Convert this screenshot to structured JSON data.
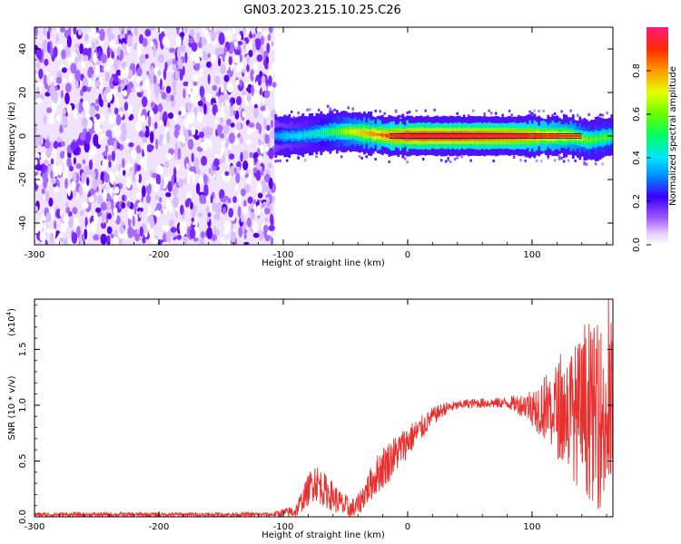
{
  "title": "GN03.2023.215.10.25.C26",
  "chart_data": [
    {
      "type": "heatmap",
      "xlabel": "Height of straight line (km)",
      "ylabel": "Frequency (Hz)",
      "xlim": [
        -300,
        165
      ],
      "ylim": [
        -50,
        50
      ],
      "x_ticks": [
        -300,
        -200,
        -100,
        0,
        100
      ],
      "y_ticks": [
        -40,
        -20,
        0,
        20,
        40
      ],
      "colorbar": {
        "label": "Normalized spectral amplitude",
        "range": [
          0.0,
          1.0
        ],
        "ticks": [
          0.0,
          0.2,
          0.4,
          0.6,
          0.8
        ]
      },
      "regions": [
        {
          "x_range": [
            -300,
            -107
          ],
          "description_level": "noise",
          "amplitude_range": [
            0.0,
            0.25
          ]
        },
        {
          "x_range": [
            -107,
            165
          ],
          "center_frequency_hz": 0,
          "band_halfwidth_hz": 8,
          "peak_amplitude": 1.0
        }
      ],
      "ridge": [
        {
          "x": -105,
          "y": 0,
          "amp": 0.35
        },
        {
          "x": -90,
          "y": 0,
          "amp": 0.4
        },
        {
          "x": -75,
          "y": 1,
          "amp": 0.45
        },
        {
          "x": -60,
          "y": 2,
          "amp": 0.55
        },
        {
          "x": -45,
          "y": 2,
          "amp": 0.7
        },
        {
          "x": -30,
          "y": 1,
          "amp": 0.8
        },
        {
          "x": -15,
          "y": 0,
          "amp": 0.9
        },
        {
          "x": 0,
          "y": 0,
          "amp": 1.0
        },
        {
          "x": 40,
          "y": 0,
          "amp": 1.0
        },
        {
          "x": 80,
          "y": 0,
          "amp": 0.95
        },
        {
          "x": 110,
          "y": 0,
          "amp": 0.85
        },
        {
          "x": 130,
          "y": 0,
          "amp": 0.75
        },
        {
          "x": 145,
          "y": -2,
          "amp": 0.6
        },
        {
          "x": 165,
          "y": 0,
          "amp": 0.55
        }
      ]
    },
    {
      "type": "line",
      "xlabel": "Height of straight line (km)",
      "ylabel": "SNR (10 * v/v)",
      "y_multiplier_label": "(x10",
      "y_multiplier_exp": "4",
      "xlim": [
        -300,
        165
      ],
      "ylim": [
        0,
        1.95
      ],
      "x_ticks": [
        -300,
        -200,
        -100,
        0,
        100
      ],
      "y_ticks": [
        0.0,
        0.5,
        1.0,
        1.5
      ],
      "y_tick_labels": [
        "0.0",
        "0.5",
        "1.0",
        "1.5"
      ],
      "line_color": "#e8302e",
      "series": [
        {
          "values": [
            {
              "x": -300,
              "y": 0.02
            },
            {
              "x": -250,
              "y": 0.02
            },
            {
              "x": -200,
              "y": 0.02
            },
            {
              "x": -150,
              "y": 0.02
            },
            {
              "x": -110,
              "y": 0.02
            },
            {
              "x": -90,
              "y": 0.05
            },
            {
              "x": -82,
              "y": 0.2
            },
            {
              "x": -75,
              "y": 0.33
            },
            {
              "x": -68,
              "y": 0.25
            },
            {
              "x": -60,
              "y": 0.18
            },
            {
              "x": -52,
              "y": 0.1
            },
            {
              "x": -45,
              "y": 0.06
            },
            {
              "x": -40,
              "y": 0.1
            },
            {
              "x": -35,
              "y": 0.2
            },
            {
              "x": -28,
              "y": 0.32
            },
            {
              "x": -22,
              "y": 0.42
            },
            {
              "x": -15,
              "y": 0.5
            },
            {
              "x": -8,
              "y": 0.58
            },
            {
              "x": 0,
              "y": 0.68
            },
            {
              "x": 10,
              "y": 0.78
            },
            {
              "x": 20,
              "y": 0.9
            },
            {
              "x": 30,
              "y": 0.97
            },
            {
              "x": 45,
              "y": 1.01
            },
            {
              "x": 60,
              "y": 1.02
            },
            {
              "x": 80,
              "y": 1.02
            },
            {
              "x": 95,
              "y": 1.0
            },
            {
              "x": 110,
              "y": 0.98
            },
            {
              "x": 125,
              "y": 0.95
            },
            {
              "x": 140,
              "y": 0.92
            },
            {
              "x": 155,
              "y": 0.9
            },
            {
              "x": 165,
              "y": 0.88
            }
          ],
          "noise_envelope": [
            {
              "x": -300,
              "amp": 0.02
            },
            {
              "x": -110,
              "amp": 0.02
            },
            {
              "x": -90,
              "amp": 0.06
            },
            {
              "x": -75,
              "amp": 0.18
            },
            {
              "x": -55,
              "amp": 0.12
            },
            {
              "x": -40,
              "amp": 0.1
            },
            {
              "x": -20,
              "amp": 0.2
            },
            {
              "x": 0,
              "amp": 0.15
            },
            {
              "x": 20,
              "amp": 0.08
            },
            {
              "x": 40,
              "amp": 0.04
            },
            {
              "x": 80,
              "amp": 0.05
            },
            {
              "x": 95,
              "amp": 0.12
            },
            {
              "x": 110,
              "amp": 0.3
            },
            {
              "x": 125,
              "amp": 0.5
            },
            {
              "x": 140,
              "amp": 0.7
            },
            {
              "x": 155,
              "amp": 0.85
            },
            {
              "x": 165,
              "amp": 0.9
            }
          ]
        }
      ]
    }
  ]
}
